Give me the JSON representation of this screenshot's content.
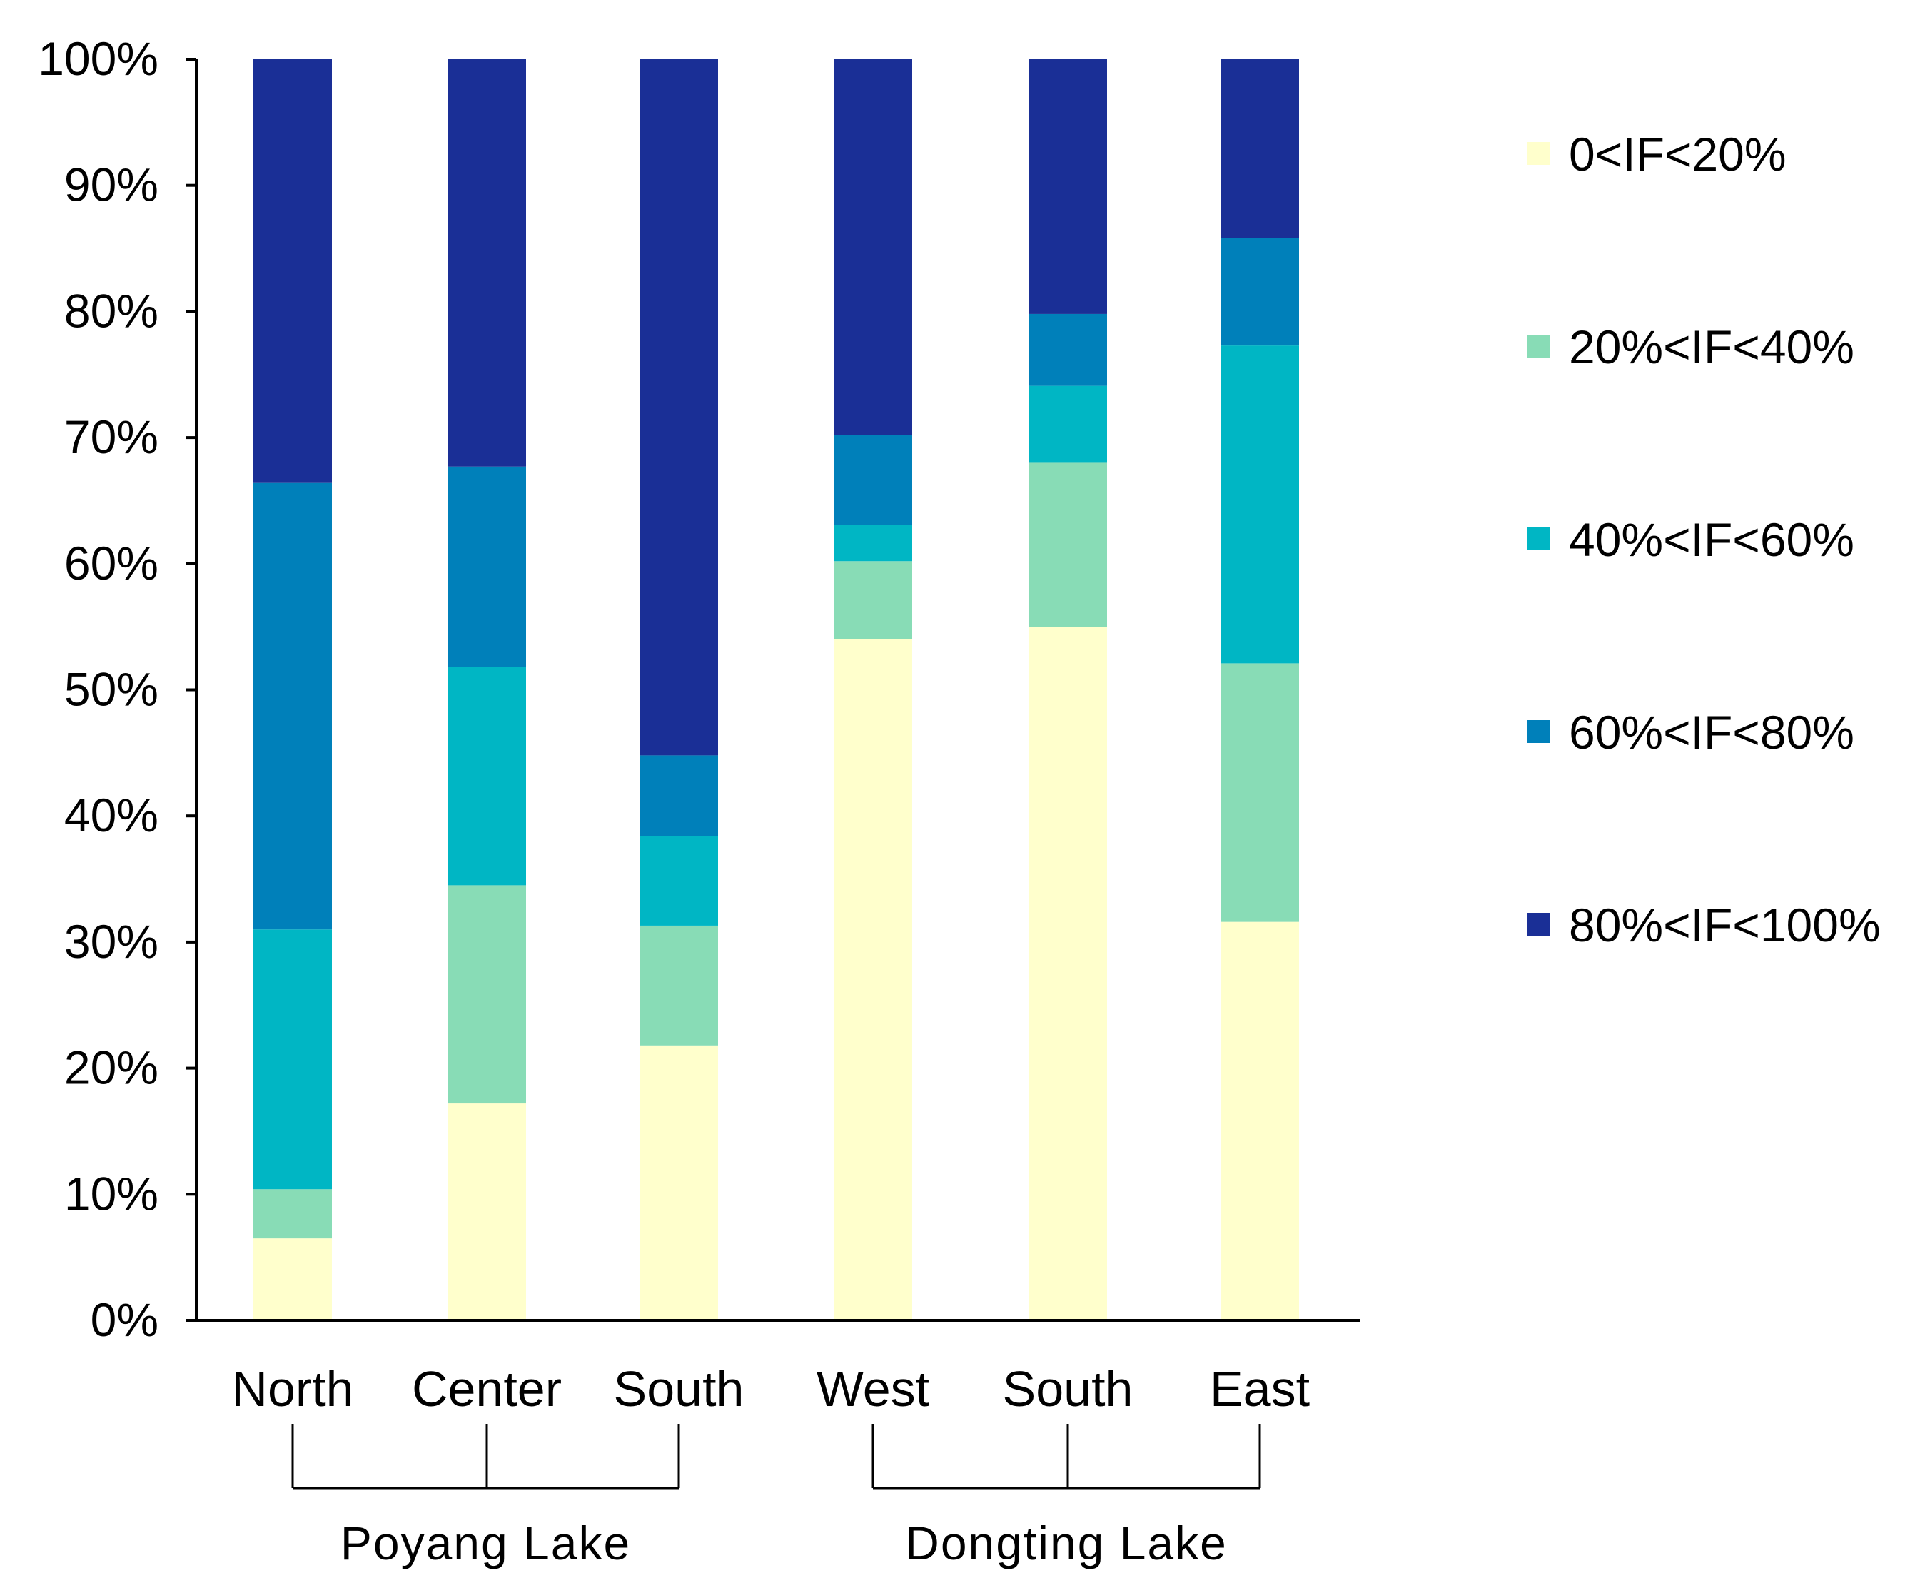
{
  "chart_data": {
    "type": "bar",
    "stacked": true,
    "categories": [
      "North",
      "Center",
      "South",
      "West",
      "South",
      "East"
    ],
    "groups": [
      {
        "label": "Poyang Lake",
        "categories": [
          0,
          1,
          2
        ]
      },
      {
        "label": "Dongting Lake",
        "categories": [
          3,
          4,
          5
        ]
      }
    ],
    "series": [
      {
        "name": "0<IF<20%",
        "color": "#ffffcc",
        "values": [
          6.5,
          17.2,
          21.8,
          54.0,
          55.0,
          31.6
        ]
      },
      {
        "name": "20%<IF<40%",
        "color": "#88dcb6",
        "values": [
          3.9,
          17.3,
          9.5,
          6.2,
          13.0,
          20.5
        ]
      },
      {
        "name": "40%<IF<60%",
        "color": "#00b6c4",
        "values": [
          20.6,
          17.3,
          7.1,
          2.9,
          6.1,
          25.2
        ]
      },
      {
        "name": "60%<IF<80%",
        "color": "#0080ba",
        "values": [
          35.4,
          15.9,
          6.4,
          7.1,
          5.7,
          8.5
        ]
      },
      {
        "name": "80%<IF<100%",
        "color": "#1a2f96",
        "values": [
          33.6,
          32.3,
          55.2,
          29.8,
          20.2,
          14.2
        ]
      }
    ],
    "yticks": [
      "0%",
      "10%",
      "20%",
      "30%",
      "40%",
      "50%",
      "60%",
      "70%",
      "80%",
      "90%",
      "100%"
    ],
    "ylim": [
      0,
      100
    ],
    "title": "",
    "xlabel": "",
    "ylabel": "",
    "grid": false,
    "legend_position": "right"
  }
}
